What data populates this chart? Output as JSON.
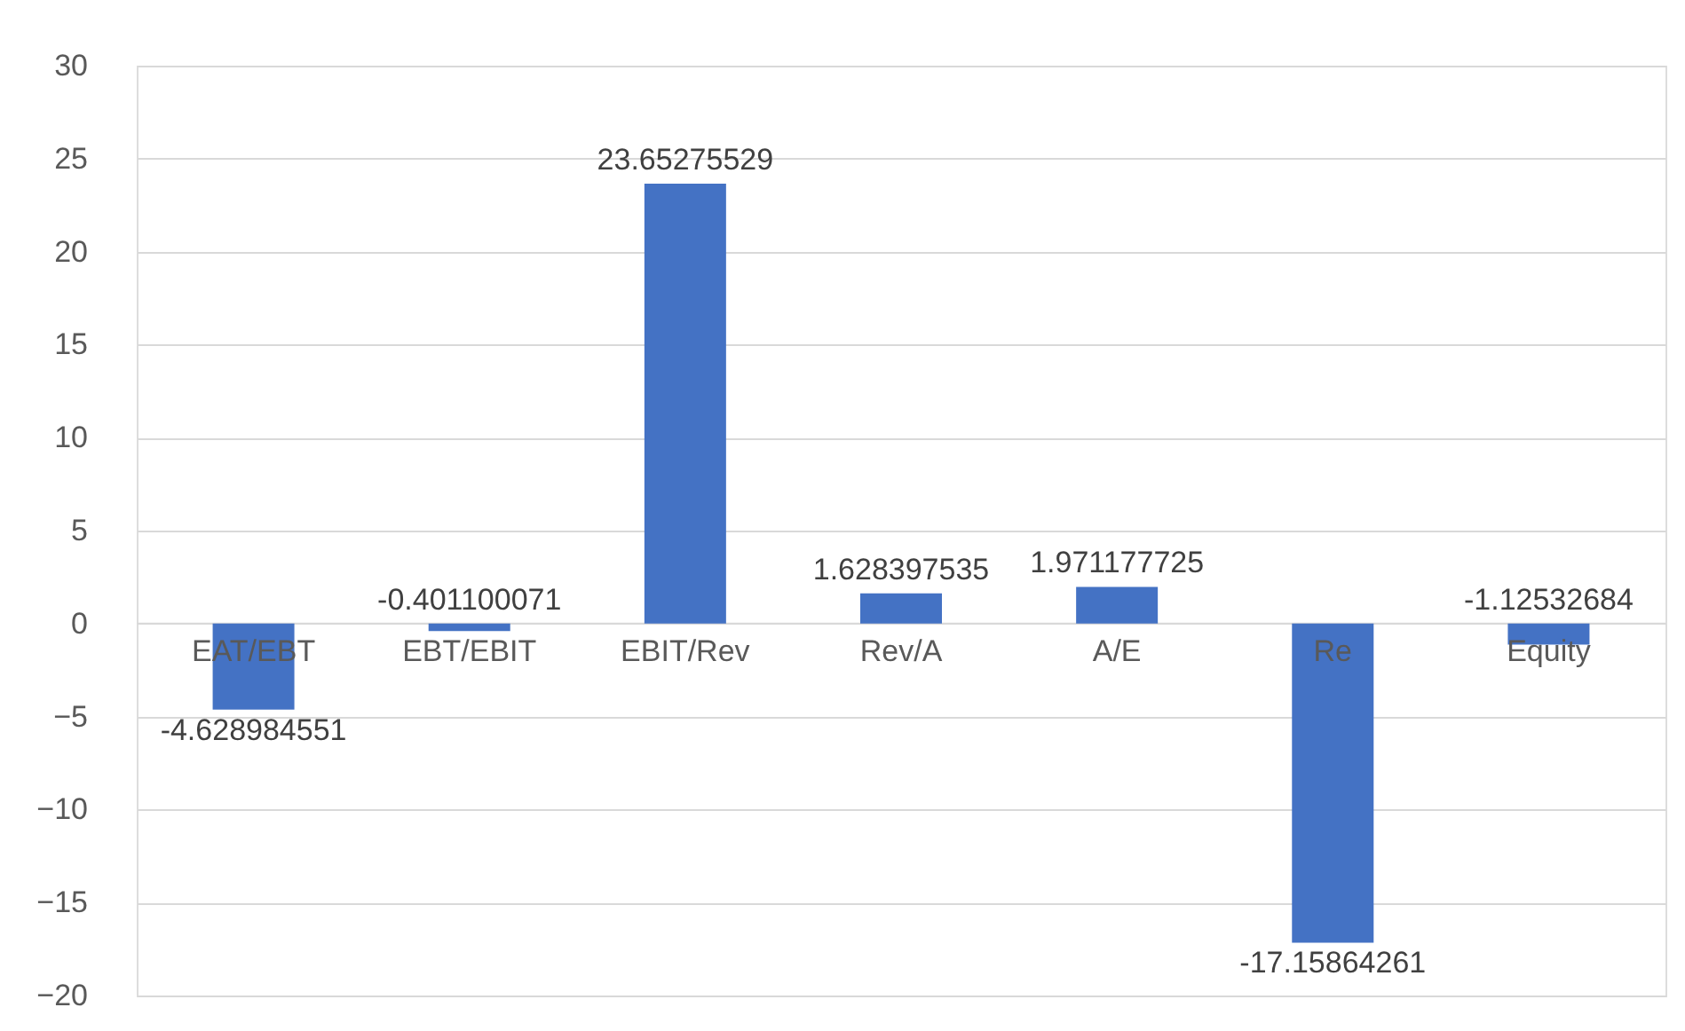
{
  "chart_data": {
    "type": "bar",
    "categories": [
      "EAT/EBT",
      "EBT/EBIT",
      "EBIT/Rev",
      "Rev/A",
      "A/E",
      "Re",
      "Equity"
    ],
    "values": [
      -4.628984551,
      -0.401100071,
      23.65275529,
      1.628397535,
      1.971177725,
      -17.15864261,
      -1.12532684
    ],
    "color": "#4472c4",
    "ylim": [
      -20,
      30
    ],
    "yticks": [
      -20,
      -15,
      -10,
      -5,
      0,
      5,
      10,
      15,
      20,
      25,
      30
    ],
    "grid": "y",
    "data_labels": true
  }
}
